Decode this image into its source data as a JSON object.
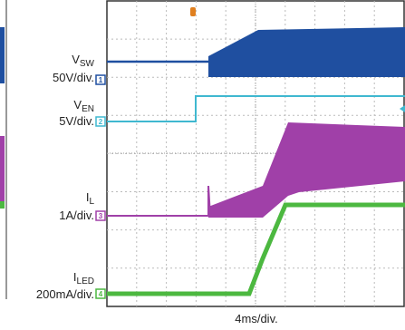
{
  "channels": [
    {
      "symbol": "V",
      "subscript": "SW",
      "scale": "50V/div.",
      "marker": "1"
    },
    {
      "symbol": "V",
      "subscript": "EN",
      "scale": "5V/div.",
      "marker": "2"
    },
    {
      "symbol": "I",
      "subscript": "L",
      "scale": "1A/div.",
      "marker": "3"
    },
    {
      "symbol": "I",
      "subscript": "LED",
      "scale": "200mA/div.",
      "marker": "4"
    }
  ],
  "time_scale": "4ms/div."
}
